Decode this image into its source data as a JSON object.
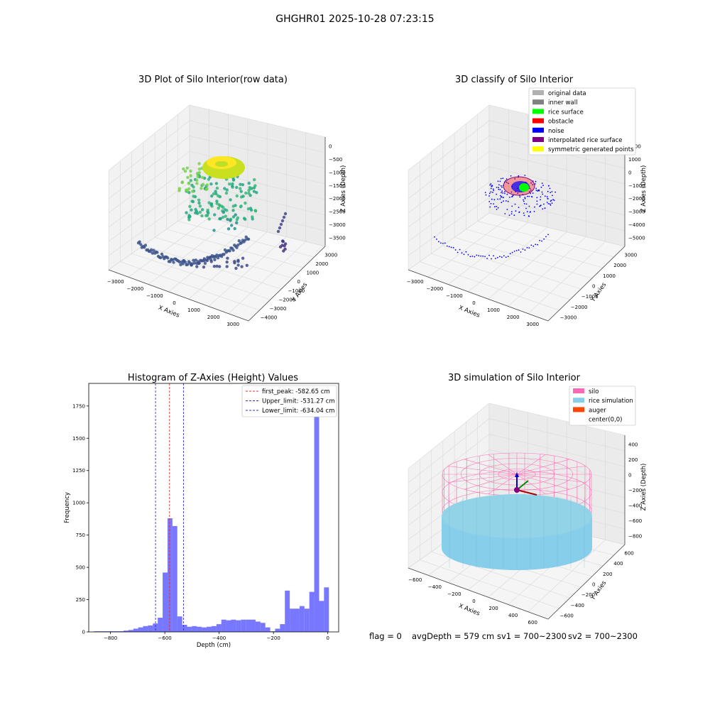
{
  "figure_title": "GHGHR01 2025-10-28 07:23:15",
  "footer": {
    "flag": "flag = 0",
    "avg_depth": "avgDepth = 579 cm",
    "sv1": "sv1 = 700~2300",
    "sv2": "sv2 = 700~2300"
  },
  "colors": {
    "hist_bar": "#5555ff",
    "first_peak": "#dd3333",
    "limits": "#3333cc",
    "original": "#b0b0b0",
    "inner_wall": "#808080",
    "rice_surface": "#00ff00",
    "obstacle": "#ff0000",
    "noise": "#0000ff",
    "interpolated": "#800080",
    "symmetric": "#ffff00",
    "silo": "#ff69b4",
    "rice_sim": "#87ceeb",
    "auger": "#ff4500"
  },
  "chart_data": [
    {
      "type": "scatter3d",
      "title": "3D Plot of Silo Interior(row data)",
      "xlabel": "X Axies",
      "ylabel": "Y Axies",
      "zlabel": "Z Axies (Depth)",
      "xticks": [
        "−3000",
        "−2000",
        "−1000",
        "0",
        "1000",
        "2000",
        "3000"
      ],
      "yticks": [
        "3000",
        "2000",
        "1000",
        "0",
        "−1000",
        "−2000",
        "−3000",
        "−4000"
      ],
      "zticks": [
        "0",
        "−500",
        "−1000",
        "−1500",
        "−2000",
        "−2500",
        "−3000",
        "−3500"
      ],
      "colormap": "viridis"
    },
    {
      "type": "scatter3d",
      "title": "3D classify of Silo Interior",
      "xlabel": "X Axies",
      "ylabel": "Y Axies",
      "zlabel": "Z Axies (Depth)",
      "xticks": [
        "−3000",
        "−2000",
        "−1000",
        "0",
        "1000",
        "2000",
        "3000"
      ],
      "yticks": [
        "3000",
        "2000",
        "1000",
        "0",
        "−1000",
        "−2000",
        "−3000"
      ],
      "zticks": [
        "2000",
        "1000",
        "0",
        "−1000",
        "−2000",
        "−3000",
        "−4000",
        "−5000"
      ],
      "legend": [
        "original data",
        "inner wall",
        "rice surface",
        "obstacle",
        "noise",
        "interpolated rice surface",
        "symmetric generated points"
      ],
      "legend_position": "upper-right"
    },
    {
      "type": "bar",
      "title": "Histogram of Z-Axies (Height) Values",
      "xlabel": "Depth (cm)",
      "ylabel": "Frequency",
      "xlim": [
        -880,
        40
      ],
      "ylim": [
        0,
        1925
      ],
      "xticks": [
        -800,
        -600,
        -400,
        -200,
        0
      ],
      "yticks": [
        0,
        250,
        500,
        750,
        1000,
        1250,
        1500,
        1750
      ],
      "bin_width": 18,
      "bin_starts": [
        -860,
        -842,
        -824,
        -806,
        -788,
        -770,
        -752,
        -734,
        -716,
        -698,
        -680,
        -662,
        -644,
        -626,
        -608,
        -590,
        -572,
        -554,
        -536,
        -518,
        -500,
        -482,
        -464,
        -446,
        -428,
        -410,
        -392,
        -374,
        -356,
        -338,
        -320,
        -302,
        -284,
        -266,
        -248,
        -230,
        -212,
        -194,
        -176,
        -158,
        -140,
        -122,
        -104,
        -86,
        -68,
        -50,
        -32,
        -14
      ],
      "values": [
        5,
        5,
        5,
        5,
        5,
        5,
        10,
        15,
        25,
        35,
        45,
        50,
        65,
        110,
        460,
        880,
        820,
        120,
        55,
        40,
        45,
        40,
        35,
        40,
        45,
        60,
        95,
        90,
        95,
        90,
        95,
        95,
        95,
        80,
        70,
        35,
        5,
        25,
        60,
        320,
        180,
        180,
        200,
        180,
        310,
        1820,
        240,
        345
      ],
      "lines": [
        {
          "name": "first_peak: -582.65 cm",
          "x": -582.65,
          "color": "first_peak"
        },
        {
          "name": "Upper_limit: -531.27 cm",
          "x": -531.27,
          "color": "limits"
        },
        {
          "name": "Lower_limit: -634.04 cm",
          "x": -634.04,
          "color": "limits"
        }
      ],
      "legend_position": "upper-right"
    },
    {
      "type": "surface3d",
      "title": "3D simulation of Silo Interior",
      "xlabel": "X Axies",
      "ylabel": "Y Axies",
      "zlabel": "Z Axies (Depth)",
      "xticks": [
        "−600",
        "−400",
        "−200",
        "0",
        "200",
        "400",
        "600"
      ],
      "yticks": [
        "600",
        "400",
        "200",
        "0",
        "−200",
        "−400",
        "−600"
      ],
      "zticks": [
        "400",
        "200",
        "0",
        "−200",
        "−400",
        "−600",
        "−800"
      ],
      "legend": [
        "silo",
        "rice simulation",
        "auger",
        "center(0,0)"
      ],
      "legend_position": "upper-right"
    }
  ]
}
